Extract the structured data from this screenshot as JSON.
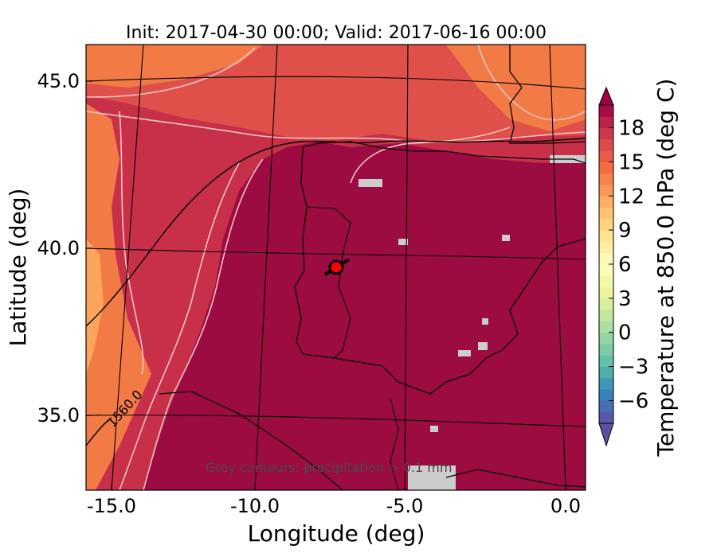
{
  "map": {
    "title": "Init: 2017-04-30 00:00; Valid: 2017-06-16 00:00",
    "xlabel": "Longitude (deg)",
    "ylabel": "Latitude (deg)",
    "x_ticks": [
      "-15.0",
      "-10.0",
      "-5.0",
      "0.0"
    ],
    "y_ticks": [
      "45.0",
      "40.0",
      "35.0"
    ],
    "contour_label": "1560.0",
    "note": "Grey contours: precipitation > 0.1 mm",
    "extent": {
      "lon": [
        -15.8,
        0.2
      ],
      "lat": [
        32.6,
        46.1
      ]
    },
    "marker": {
      "lon": -7.6,
      "lat": 39.3,
      "color": "#ff0000"
    },
    "colors": {
      "hot": "#9c0b41",
      "warm": "#c8304a",
      "mid": "#e0504a",
      "cool": "#f27a45",
      "pale": "#fda55c",
      "precip": "#cccccc",
      "contour_light": "#f7c5c0"
    }
  },
  "colorbar": {
    "label": "Temperature at 850.0 hPa (deg C)",
    "ticks": [
      "18",
      "15",
      "12",
      "9",
      "6",
      "3",
      "0",
      "−3",
      "−6"
    ],
    "tick_values": [
      18,
      15,
      12,
      9,
      6,
      3,
      0,
      -3,
      -6
    ],
    "range": [
      -8,
      20
    ],
    "levels": 28,
    "colors": [
      "#5e4fa2",
      "#3288bd",
      "#66c2a5",
      "#abdda4",
      "#e6f598",
      "#ffffbf",
      "#fee08b",
      "#fdae61",
      "#f46d43",
      "#d53e4f",
      "#9e0142"
    ]
  }
}
